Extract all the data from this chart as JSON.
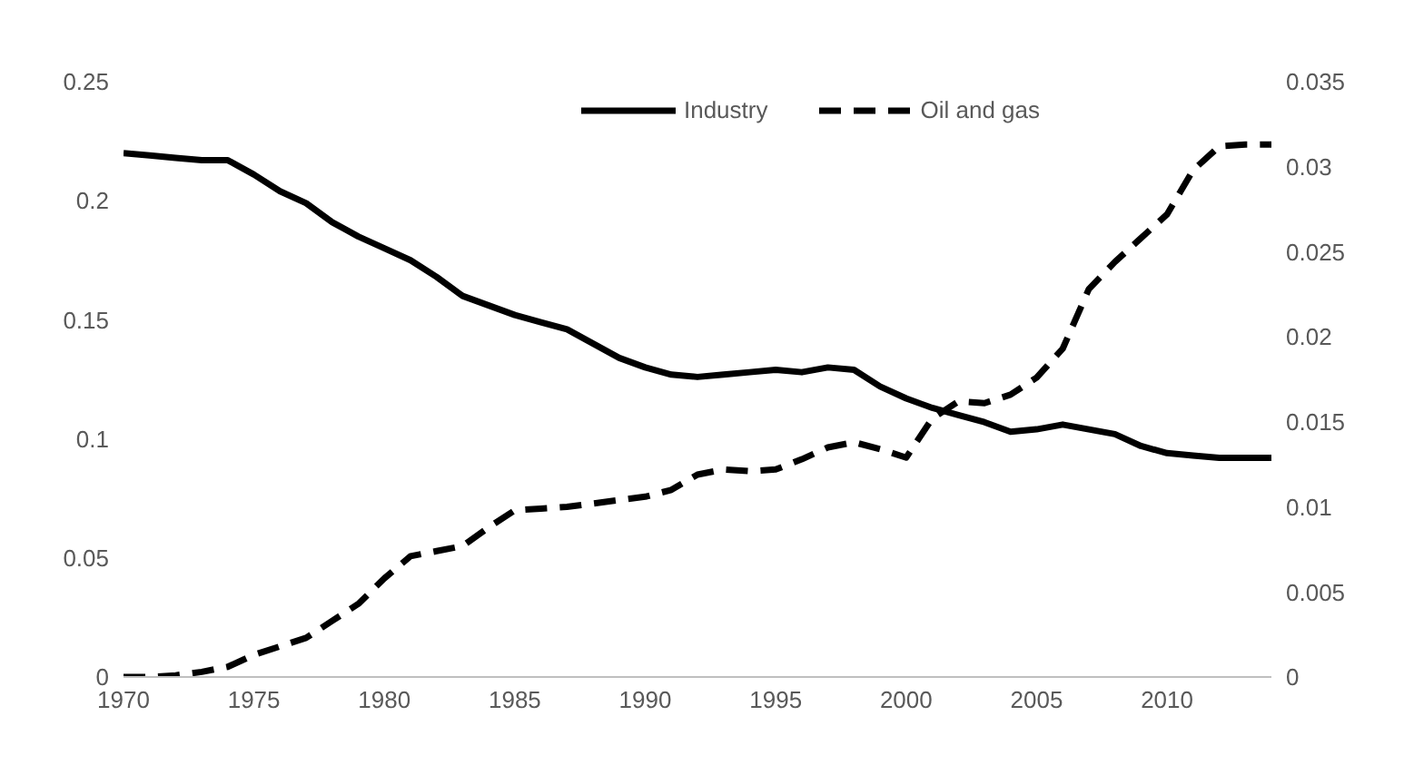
{
  "chart_data": {
    "type": "line",
    "x": [
      1970,
      1971,
      1972,
      1973,
      1974,
      1975,
      1976,
      1977,
      1978,
      1979,
      1980,
      1981,
      1982,
      1983,
      1984,
      1985,
      1986,
      1987,
      1988,
      1989,
      1990,
      1991,
      1992,
      1993,
      1994,
      1995,
      1996,
      1997,
      1998,
      1999,
      2000,
      2001,
      2002,
      2003,
      2004,
      2005,
      2006,
      2007,
      2008,
      2009,
      2010,
      2011,
      2012,
      2013,
      2014
    ],
    "series": [
      {
        "name": "Industry",
        "color": "#000000",
        "line_style": "solid",
        "values": [
          0.22,
          0.219,
          0.218,
          0.217,
          0.217,
          0.211,
          0.204,
          0.199,
          0.191,
          0.185,
          0.18,
          0.175,
          0.168,
          0.16,
          0.156,
          0.152,
          0.149,
          0.146,
          0.14,
          0.134,
          0.13,
          0.127,
          0.126,
          0.127,
          0.128,
          0.129,
          0.128,
          0.13,
          0.129,
          0.122,
          0.117,
          0.113,
          0.11,
          0.107,
          0.103,
          0.104,
          0.106,
          0.104,
          0.102,
          0.097,
          0.094,
          0.093,
          0.092,
          0.092,
          0.092
        ]
      },
      {
        "name": "Oil and gas",
        "color": "#000000",
        "line_style": "dashed",
        "axis": "y2",
        "values": [
          0,
          0,
          0.0001,
          0.0003,
          0.0006,
          0.0013,
          0.0018,
          0.0023,
          0.0033,
          0.0043,
          0.0058,
          0.0071,
          0.0074,
          0.0077,
          0.0088,
          0.0098,
          0.0099,
          0.01,
          0.0102,
          0.0104,
          0.0106,
          0.011,
          0.0119,
          0.0122,
          0.0121,
          0.0122,
          0.0128,
          0.0135,
          0.0138,
          0.0134,
          0.0129,
          0.0152,
          0.0162,
          0.0161,
          0.0166,
          0.0176,
          0.0193,
          0.0228,
          0.0244,
          0.0258,
          0.0272,
          0.0298,
          0.0312,
          0.0313,
          0.0313
        ]
      }
    ],
    "xlim": [
      1970,
      2014
    ],
    "xticks": [
      1970,
      1975,
      1980,
      1985,
      1990,
      1995,
      2000,
      2005,
      2010
    ],
    "ylim": [
      0,
      0.25
    ],
    "yticks": [
      0,
      0.05,
      0.1,
      0.15,
      0.2,
      0.25
    ],
    "y2lim": [
      0,
      0.035
    ],
    "y2ticks": [
      0,
      0.005,
      0.01,
      0.015,
      0.02,
      0.025,
      0.03,
      0.035
    ],
    "marker": "none",
    "legend": "top",
    "grid": false
  }
}
